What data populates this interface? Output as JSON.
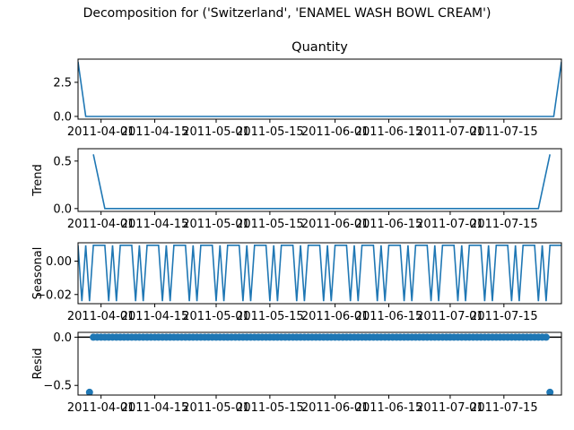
{
  "suptitle": "Decomposition for ('Switzerland', 'ENAMEL WASH BOWL CREAM')",
  "line_color": "#1f77b4",
  "x_tick_labels": [
    "2011-04-01",
    "2011-04-15",
    "2011-05-01",
    "2011-05-15",
    "2011-06-01",
    "2011-06-15",
    "2011-07-01",
    "2011-07-15"
  ],
  "chart_data": [
    {
      "type": "line",
      "title": "Quantity",
      "ylabel": "",
      "x_start": "2011-03-26",
      "x_end": "2011-07-30",
      "ylim": [
        -0.2,
        4.2
      ],
      "yticks": [
        0.0,
        2.5
      ],
      "ytick_labels": [
        "0.0",
        "2.5"
      ],
      "series": [
        {
          "points": [
            [
              "2011-03-26",
              4.0
            ],
            [
              "2011-03-28",
              0.0
            ],
            [
              "2011-07-28",
              0.0
            ],
            [
              "2011-07-30",
              4.0
            ]
          ]
        }
      ]
    },
    {
      "type": "line",
      "title": "",
      "ylabel": "Trend",
      "x_start": "2011-03-26",
      "x_end": "2011-07-30",
      "ylim": [
        -0.03,
        0.63
      ],
      "yticks": [
        0.0,
        0.5
      ],
      "ytick_labels": [
        "0.0",
        "0.5"
      ],
      "series": [
        {
          "points": [
            [
              "2011-03-30",
              0.571
            ],
            [
              "2011-04-02",
              0.0
            ],
            [
              "2011-07-24",
              0.0
            ],
            [
              "2011-07-27",
              0.571
            ]
          ]
        }
      ]
    },
    {
      "type": "line",
      "title": "",
      "ylabel": "Seasonal",
      "x_start": "2011-03-26",
      "x_end": "2011-07-30",
      "ylim": [
        -0.0255,
        0.011
      ],
      "yticks": [
        0.0,
        -0.02
      ],
      "ytick_labels": [
        "0.00",
        "−0.02"
      ],
      "period": 7,
      "weekly_pattern": [
        0.0095,
        -0.024,
        0.0095,
        -0.024,
        0.0095,
        0.0095,
        0.0095
      ]
    },
    {
      "type": "scatter",
      "title": "",
      "ylabel": "Resid",
      "x_start": "2011-03-26",
      "x_end": "2011-07-30",
      "ylim": [
        -0.6,
        0.05
      ],
      "yticks": [
        0.0,
        -0.5
      ],
      "ytick_labels": [
        "0.0",
        "−0.5"
      ],
      "hline": 0.0,
      "resid_start": "2011-03-29",
      "resid_end": "2011-07-27",
      "outliers": [
        [
          "2011-03-29",
          -0.571
        ],
        [
          "2011-07-27",
          -0.571
        ]
      ]
    }
  ]
}
